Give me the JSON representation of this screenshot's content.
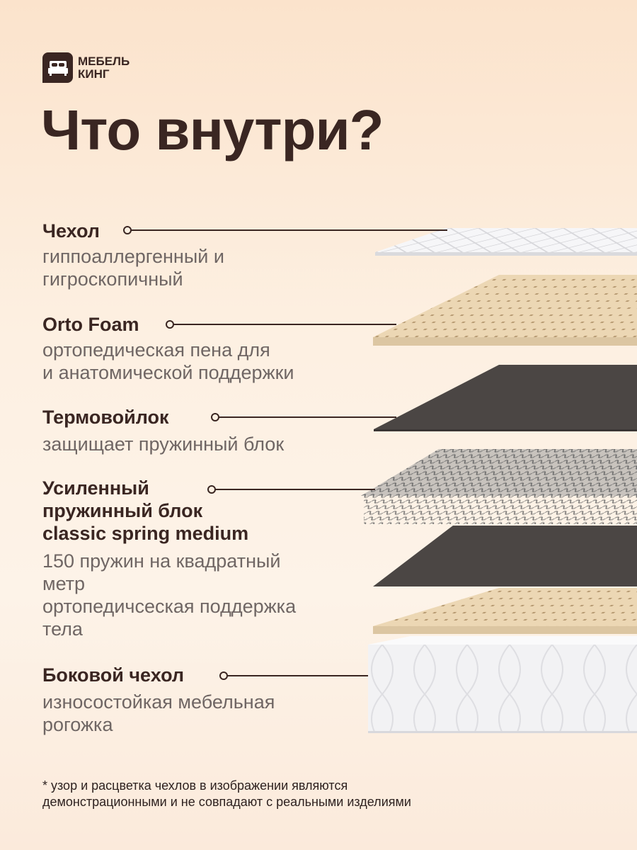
{
  "brand": {
    "line1": "МЕБЕЛЬ",
    "line2": "КИНГ"
  },
  "title": "Что внутри?",
  "layers": [
    {
      "label": "Чехол",
      "desc": [
        "гиппоаллергенный и",
        "гигроскопичный"
      ]
    },
    {
      "label": "Orto Foam",
      "desc": [
        "ортопедическая пена для",
        "и анатомической поддержки"
      ]
    },
    {
      "label": "Термовойлок",
      "desc": [
        "защищает пружинный блок"
      ]
    },
    {
      "label": [
        "Усиленный",
        "пружинный блок",
        "classic spring medium"
      ],
      "desc": [
        "150 пружин на квадратный",
        "метр",
        "ортопедичсеская поддержка",
        "тела"
      ]
    },
    {
      "label": "Боковой чехол",
      "desc": [
        "износостойкая мебельная",
        "рогожка"
      ]
    }
  ],
  "footnote": [
    "* узор и расцветка чехлов в изображении являются",
    "демонстрационными и не совпадают с реальными изделиями"
  ],
  "colors": {
    "text": "#3a2622",
    "muted": "#6f6664",
    "foam": "#e6cfa8",
    "felt": "#4a4442",
    "cover": "#f4f4f6"
  }
}
